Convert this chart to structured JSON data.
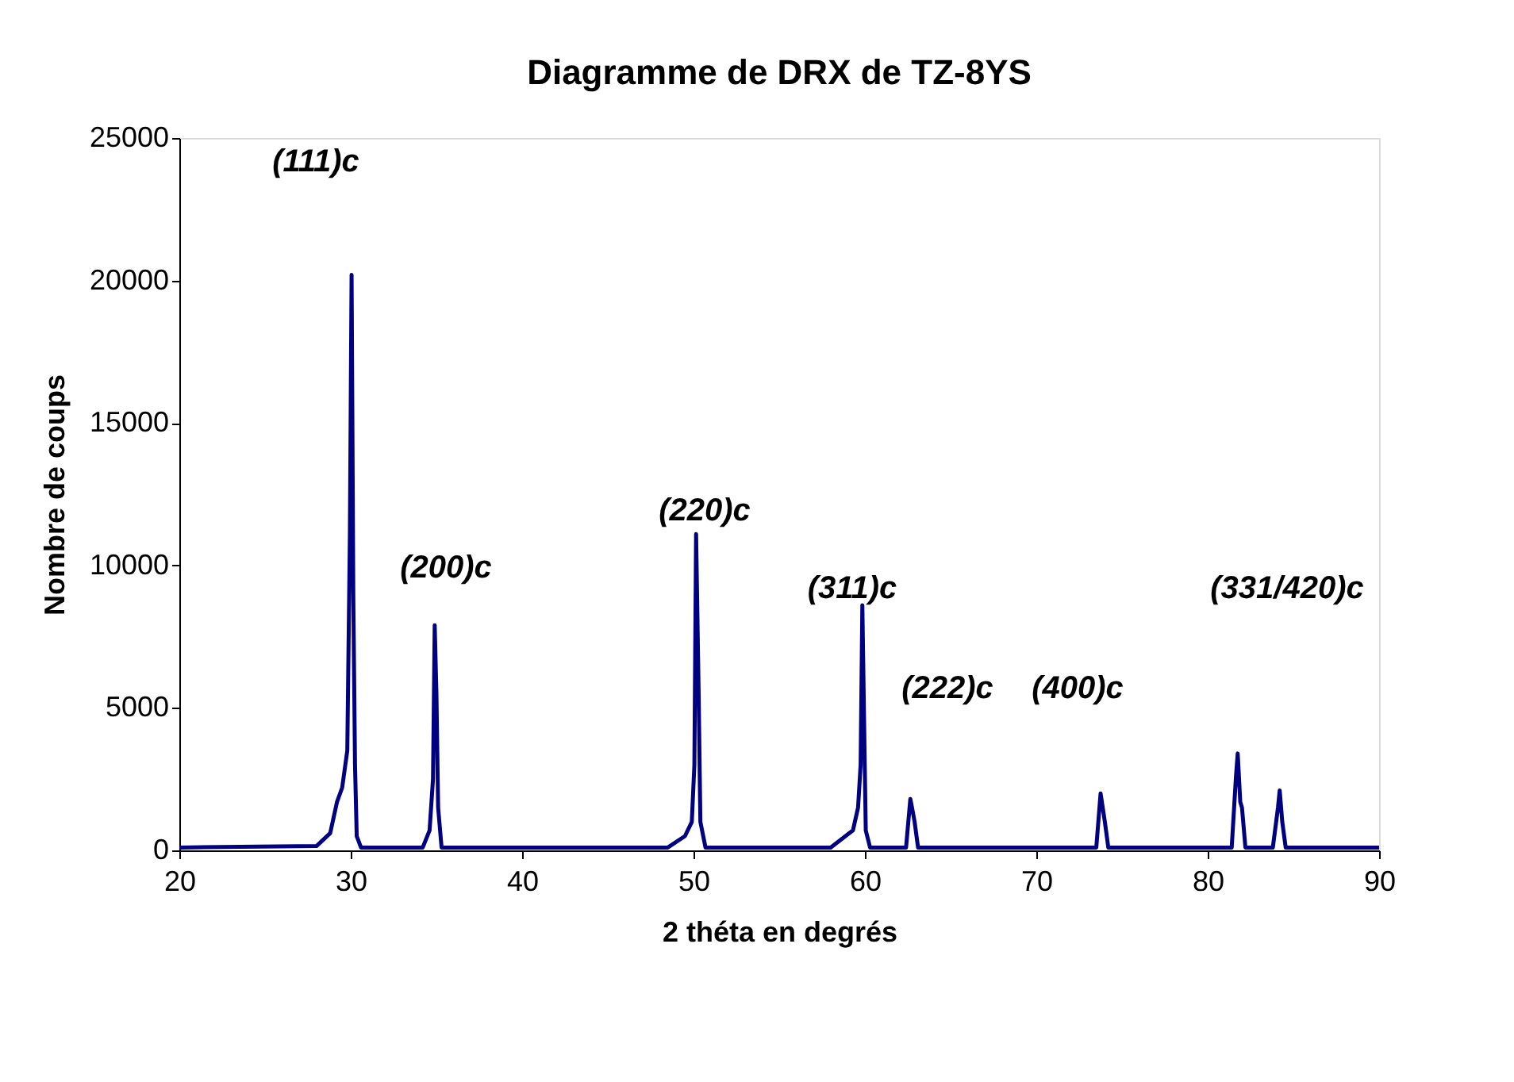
{
  "chart_data": {
    "type": "line",
    "title": "Diagramme de DRX de TZ-8YS",
    "xlabel": "2 théta en degrés",
    "ylabel": "Nombre de coups",
    "x": [
      20,
      28.0,
      28.8,
      29.2,
      29.5,
      29.8,
      29.95,
      30.05,
      30.15,
      30.25,
      30.35,
      30.6,
      34.2,
      34.6,
      34.8,
      34.9,
      35.0,
      35.1,
      35.3,
      48.5,
      49.5,
      49.9,
      50.05,
      50.15,
      50.3,
      50.4,
      50.7,
      58.0,
      59.3,
      59.6,
      59.75,
      59.85,
      59.95,
      60.05,
      60.3,
      62.4,
      62.65,
      62.75,
      62.9,
      63.1,
      73.5,
      73.75,
      73.85,
      74.0,
      74.2,
      81.4,
      81.65,
      81.75,
      81.9,
      82.0,
      82.2,
      83.8,
      84.1,
      84.2,
      84.35,
      84.55,
      90
    ],
    "values": [
      100,
      150,
      600,
      1700,
      2200,
      3500,
      11000,
      20200,
      9000,
      3000,
      500,
      100,
      100,
      700,
      2500,
      7900,
      5500,
      1500,
      100,
      100,
      500,
      1000,
      3000,
      11100,
      5500,
      1000,
      100,
      100,
      700,
      1500,
      3000,
      8600,
      4600,
      700,
      100,
      100,
      1800,
      1500,
      1000,
      100,
      100,
      2000,
      1600,
      1000,
      100,
      100,
      2600,
      3400,
      1700,
      1500,
      100,
      100,
      1500,
      2100,
      1000,
      100,
      100
    ],
    "color": "#000080",
    "xlim": [
      20,
      90
    ],
    "xticks": [
      20,
      30,
      40,
      50,
      60,
      70,
      80,
      90
    ],
    "ylim": [
      0,
      25000
    ],
    "yticks": [
      0,
      5000,
      10000,
      15000,
      20000,
      25000
    ],
    "grid": false,
    "marker": "none",
    "line_style": "solid",
    "annotations": [
      "(111)c",
      "(200)c",
      "(220)c",
      "(311)c",
      "(222)c",
      "(400)c",
      "(331/420)c"
    ]
  }
}
